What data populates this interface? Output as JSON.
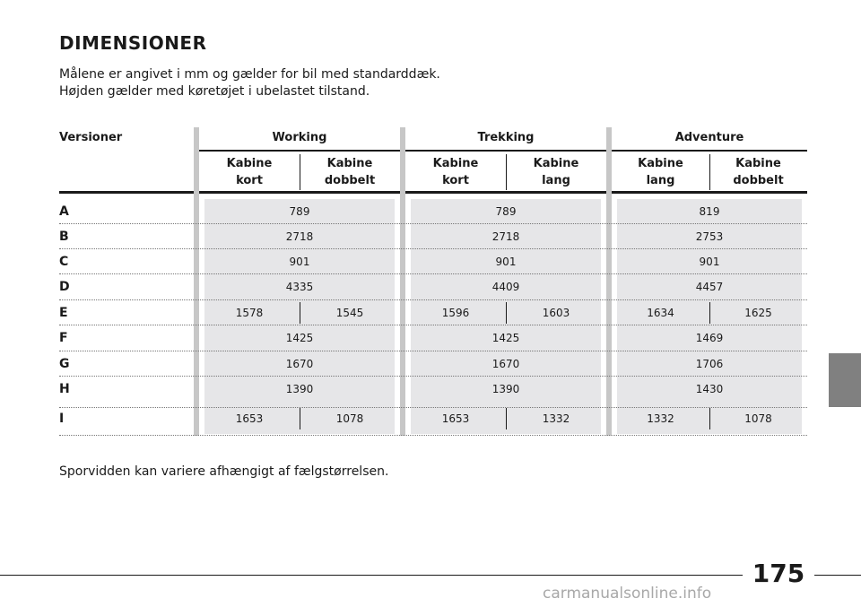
{
  "title": "DIMENSIONER",
  "intro": [
    "Målene er angivet i mm og gælder for bil med standarddæk.",
    "Højden gælder med køretøjet i ubelastet tilstand."
  ],
  "table": {
    "row_header": "Versioner",
    "groups": [
      {
        "name": "Working",
        "sub": [
          [
            "Kabine",
            "kort"
          ],
          [
            "Kabine",
            "dobbelt"
          ]
        ]
      },
      {
        "name": "Trekking",
        "sub": [
          [
            "Kabine",
            "kort"
          ],
          [
            "Kabine",
            "lang"
          ]
        ]
      },
      {
        "name": "Adventure",
        "sub": [
          [
            "Kabine",
            "lang"
          ],
          [
            "Kabine",
            "dobbelt"
          ]
        ]
      }
    ],
    "rows": [
      {
        "label": "A",
        "values": [
          [
            "789"
          ],
          [
            "789"
          ],
          [
            "819"
          ]
        ]
      },
      {
        "label": "B",
        "values": [
          [
            "2718"
          ],
          [
            "2718"
          ],
          [
            "2753"
          ]
        ]
      },
      {
        "label": "C",
        "values": [
          [
            "901"
          ],
          [
            "901"
          ],
          [
            "901"
          ]
        ]
      },
      {
        "label": "D",
        "values": [
          [
            "4335"
          ],
          [
            "4409"
          ],
          [
            "4457"
          ]
        ]
      },
      {
        "label": "E",
        "values": [
          [
            "1578",
            "1545"
          ],
          [
            "1596",
            "1603"
          ],
          [
            "1634",
            "1625"
          ]
        ]
      },
      {
        "label": "F",
        "values": [
          [
            "1425"
          ],
          [
            "1425"
          ],
          [
            "1469"
          ]
        ]
      },
      {
        "label": "G",
        "values": [
          [
            "1670"
          ],
          [
            "1670"
          ],
          [
            "1706"
          ]
        ]
      },
      {
        "label": "H",
        "values": [
          [
            "1390"
          ],
          [
            "1390"
          ],
          [
            "1430"
          ]
        ]
      },
      {
        "label": "I",
        "values": [
          [
            "1653",
            "1078"
          ],
          [
            "1653",
            "1332"
          ],
          [
            "1332",
            "1078"
          ]
        ]
      }
    ]
  },
  "footnote": "Sporvidden kan variere afhængigt af fælgstørrelsen.",
  "page_number": "175",
  "watermark": "carmanualsonline.info",
  "colors": {
    "shade": "#e6e6e8",
    "divider_bar": "#c7c7c7",
    "side_tab": "#808080"
  }
}
